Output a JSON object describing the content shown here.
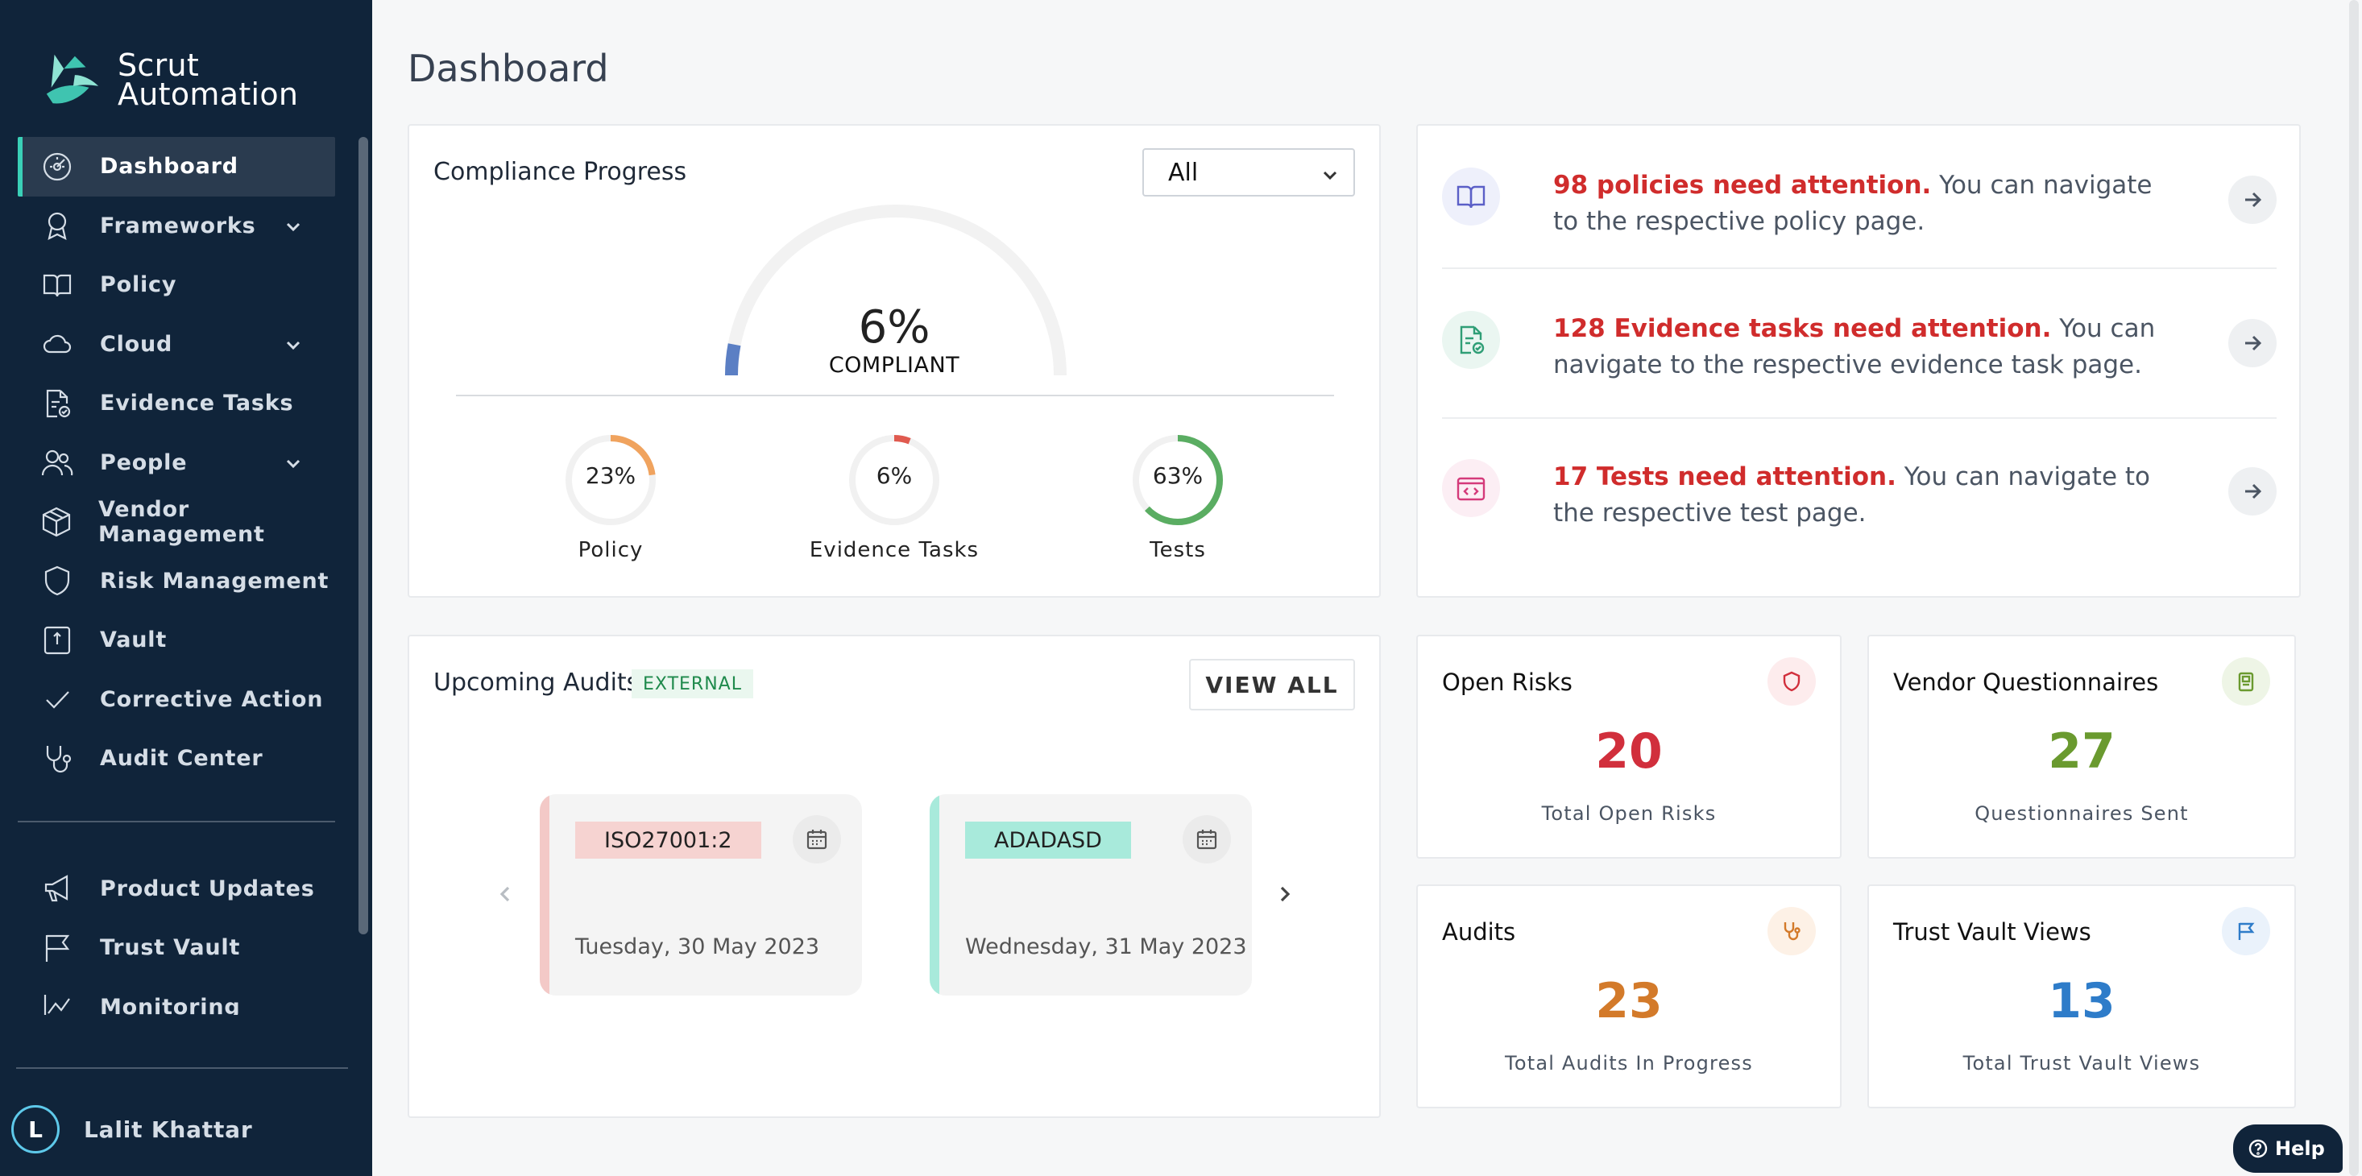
{
  "app": {
    "brand_line1": "Scrut",
    "brand_line2": "Automation"
  },
  "sidebar": {
    "items": [
      {
        "label": "Dashboard",
        "icon": "dashboard-icon",
        "active": true
      },
      {
        "label": "Frameworks",
        "icon": "award-icon",
        "expandable": true
      },
      {
        "label": "Policy",
        "icon": "book-icon"
      },
      {
        "label": "Cloud",
        "icon": "cloud-icon",
        "expandable": true
      },
      {
        "label": "Evidence Tasks",
        "icon": "document-check-icon"
      },
      {
        "label": "People",
        "icon": "people-icon",
        "expandable": true
      },
      {
        "label": "Vendor Management",
        "icon": "box-icon"
      },
      {
        "label": "Risk Management",
        "icon": "shield-icon"
      },
      {
        "label": "Vault",
        "icon": "vault-icon"
      },
      {
        "label": "Corrective Action",
        "icon": "check-icon"
      },
      {
        "label": "Audit Center",
        "icon": "stethoscope-icon"
      }
    ],
    "secondary_items": [
      {
        "label": "Product Updates",
        "icon": "megaphone-icon"
      },
      {
        "label": "Trust Vault",
        "icon": "flag-icon"
      },
      {
        "label": "Monitoring",
        "icon": "chart-icon"
      }
    ],
    "user": {
      "initial": "L",
      "name": "Lalit Khattar"
    }
  },
  "page": {
    "title": "Dashboard"
  },
  "compliance": {
    "title": "Compliance Progress",
    "filter_value": "All",
    "overall_percent": 6,
    "overall_text": "6%",
    "overall_label": "COMPLIANT",
    "breakdown": [
      {
        "label": "Policy",
        "percent": 23,
        "text": "23%",
        "color": "#f0a35e"
      },
      {
        "label": "Evidence Tasks",
        "percent": 6,
        "text": "6%",
        "color": "#e05a4f"
      },
      {
        "label": "Tests",
        "percent": 63,
        "text": "63%",
        "color": "#5aad62"
      }
    ],
    "gauge_color": "#5b7fc4"
  },
  "attention": [
    {
      "highlight": "98 policies need attention.",
      "rest": " You can navigate to the respective policy page.",
      "icon": "book-icon",
      "icon_color": "#5b5fc7",
      "icon_bg": "#eef0fb"
    },
    {
      "highlight": "128 Evidence tasks need attention.",
      "rest": " You can navigate to the respective evidence task page.",
      "icon": "document-check-icon",
      "icon_color": "#2f9e76",
      "icon_bg": "#eaf6f1"
    },
    {
      "highlight": "17 Tests need attention.",
      "rest": " You can navigate to the respective test page.",
      "icon": "code-icon",
      "icon_color": "#d43a7a",
      "icon_bg": "#fceef4"
    }
  ],
  "audits": {
    "title": "Upcoming Audits",
    "badge": "EXTERNAL",
    "view_all": "VIEW ALL",
    "cards": [
      {
        "tag": "ISO27001:2",
        "date": "Tuesday, 30 May 2023",
        "accent": "#f3c9c7",
        "tag_bg": "#f6d3d1"
      },
      {
        "tag": "ADADASD",
        "date": "Wednesday, 31 May 2023",
        "accent": "#a8eadb",
        "tag_bg": "#a8eadb"
      }
    ]
  },
  "stats": [
    {
      "title": "Open Risks",
      "value": "20",
      "label": "Total Open Risks",
      "color": "#d12f3c",
      "icon": "shield-icon",
      "icon_bg": "#fdeced"
    },
    {
      "title": "Vendor Questionnaires",
      "value": "27",
      "label": "Questionnaires Sent",
      "color": "#6a9a2f",
      "icon": "clipboard-icon",
      "icon_bg": "#eef5e6"
    },
    {
      "title": "Audits",
      "value": "23",
      "label": "Total Audits In Progress",
      "color": "#d37a2a",
      "icon": "stethoscope-icon",
      "icon_bg": "#fdf1e6"
    },
    {
      "title": "Trust Vault Views",
      "value": "13",
      "label": "Total Trust Vault Views",
      "color": "#2e7cc9",
      "icon": "flag-icon",
      "icon_bg": "#eaf2fb"
    }
  ],
  "help": {
    "label": "Help"
  }
}
